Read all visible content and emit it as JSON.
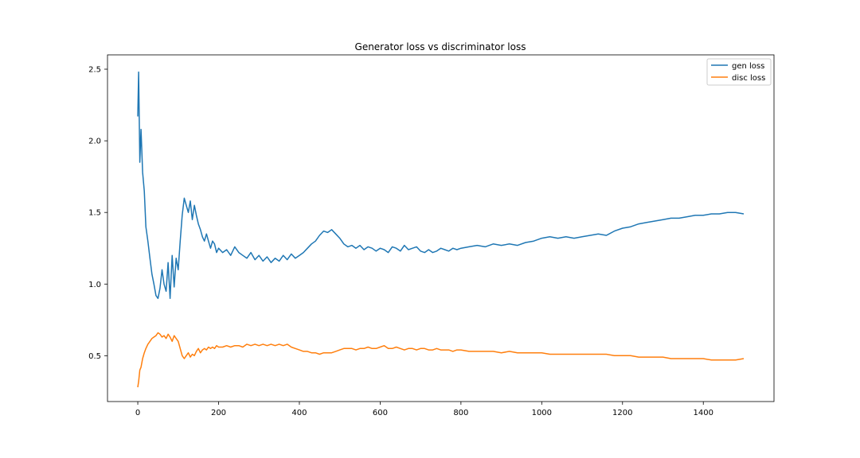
{
  "chart_data": {
    "type": "line",
    "title": "Generator loss vs discriminator loss",
    "xlabel": "",
    "ylabel": "",
    "xlim": [
      -75,
      1575
    ],
    "ylim": [
      0.18,
      2.6
    ],
    "x_ticks": [
      0,
      200,
      400,
      600,
      800,
      1000,
      1200,
      1400
    ],
    "y_ticks": [
      0.5,
      1.0,
      1.5,
      2.0,
      2.5
    ],
    "x_tick_labels": [
      "0",
      "200",
      "400",
      "600",
      "800",
      "1000",
      "1200",
      "1400"
    ],
    "y_tick_labels": [
      "0.5",
      "1.0",
      "1.5",
      "2.0",
      "2.5"
    ],
    "grid": false,
    "legend_position": "top-right",
    "series": [
      {
        "name": "gen loss",
        "color": "#1f77b4",
        "x": [
          0,
          2,
          5,
          8,
          12,
          16,
          20,
          25,
          30,
          35,
          40,
          45,
          50,
          55,
          60,
          65,
          70,
          75,
          80,
          85,
          90,
          95,
          100,
          105,
          110,
          115,
          120,
          125,
          130,
          135,
          140,
          145,
          150,
          155,
          160,
          165,
          170,
          175,
          180,
          185,
          190,
          195,
          200,
          210,
          220,
          230,
          240,
          250,
          260,
          270,
          280,
          290,
          300,
          310,
          320,
          330,
          340,
          350,
          360,
          370,
          380,
          390,
          400,
          410,
          420,
          430,
          440,
          450,
          460,
          470,
          480,
          490,
          500,
          510,
          520,
          530,
          540,
          550,
          560,
          570,
          580,
          590,
          600,
          610,
          620,
          630,
          640,
          650,
          660,
          670,
          680,
          690,
          700,
          710,
          720,
          730,
          740,
          750,
          760,
          770,
          780,
          790,
          800,
          820,
          840,
          860,
          880,
          900,
          920,
          940,
          960,
          980,
          1000,
          1020,
          1040,
          1060,
          1080,
          1100,
          1120,
          1140,
          1160,
          1180,
          1200,
          1220,
          1240,
          1260,
          1280,
          1300,
          1320,
          1340,
          1360,
          1380,
          1400,
          1420,
          1440,
          1460,
          1480,
          1500
        ],
        "values": [
          2.17,
          2.48,
          1.85,
          2.08,
          1.78,
          1.65,
          1.4,
          1.3,
          1.18,
          1.07,
          1.0,
          0.92,
          0.9,
          0.97,
          1.1,
          1.0,
          0.95,
          1.15,
          0.9,
          1.2,
          0.98,
          1.18,
          1.1,
          1.3,
          1.48,
          1.6,
          1.55,
          1.5,
          1.58,
          1.45,
          1.55,
          1.48,
          1.42,
          1.38,
          1.33,
          1.3,
          1.35,
          1.3,
          1.25,
          1.3,
          1.28,
          1.22,
          1.25,
          1.22,
          1.24,
          1.2,
          1.26,
          1.22,
          1.2,
          1.18,
          1.22,
          1.17,
          1.2,
          1.16,
          1.19,
          1.15,
          1.18,
          1.16,
          1.2,
          1.17,
          1.21,
          1.18,
          1.2,
          1.22,
          1.25,
          1.28,
          1.3,
          1.34,
          1.37,
          1.36,
          1.38,
          1.35,
          1.32,
          1.28,
          1.26,
          1.27,
          1.25,
          1.27,
          1.24,
          1.26,
          1.25,
          1.23,
          1.25,
          1.24,
          1.22,
          1.26,
          1.25,
          1.23,
          1.27,
          1.24,
          1.25,
          1.26,
          1.23,
          1.22,
          1.24,
          1.22,
          1.23,
          1.25,
          1.24,
          1.23,
          1.25,
          1.24,
          1.25,
          1.26,
          1.27,
          1.26,
          1.28,
          1.27,
          1.28,
          1.27,
          1.29,
          1.3,
          1.32,
          1.33,
          1.32,
          1.33,
          1.32,
          1.33,
          1.34,
          1.35,
          1.34,
          1.37,
          1.39,
          1.4,
          1.42,
          1.43,
          1.44,
          1.45,
          1.46,
          1.46,
          1.47,
          1.48,
          1.48,
          1.49,
          1.49,
          1.5,
          1.5,
          1.49
        ]
      },
      {
        "name": "disc loss",
        "color": "#ff7f0e",
        "x": [
          0,
          2,
          5,
          8,
          12,
          16,
          20,
          25,
          30,
          35,
          40,
          45,
          50,
          55,
          60,
          65,
          70,
          75,
          80,
          85,
          90,
          95,
          100,
          105,
          110,
          115,
          120,
          125,
          130,
          135,
          140,
          145,
          150,
          155,
          160,
          165,
          170,
          175,
          180,
          185,
          190,
          195,
          200,
          210,
          220,
          230,
          240,
          250,
          260,
          270,
          280,
          290,
          300,
          310,
          320,
          330,
          340,
          350,
          360,
          370,
          380,
          390,
          400,
          410,
          420,
          430,
          440,
          450,
          460,
          470,
          480,
          490,
          500,
          510,
          520,
          530,
          540,
          550,
          560,
          570,
          580,
          590,
          600,
          610,
          620,
          630,
          640,
          650,
          660,
          670,
          680,
          690,
          700,
          710,
          720,
          730,
          740,
          750,
          760,
          770,
          780,
          790,
          800,
          820,
          840,
          860,
          880,
          900,
          920,
          940,
          960,
          980,
          1000,
          1020,
          1040,
          1060,
          1080,
          1100,
          1120,
          1140,
          1160,
          1180,
          1200,
          1220,
          1240,
          1260,
          1280,
          1300,
          1320,
          1340,
          1360,
          1380,
          1400,
          1420,
          1440,
          1460,
          1480,
          1500
        ],
        "values": [
          0.28,
          0.32,
          0.4,
          0.42,
          0.48,
          0.52,
          0.55,
          0.58,
          0.6,
          0.62,
          0.63,
          0.64,
          0.66,
          0.65,
          0.63,
          0.64,
          0.62,
          0.65,
          0.63,
          0.6,
          0.64,
          0.62,
          0.6,
          0.55,
          0.5,
          0.48,
          0.5,
          0.52,
          0.49,
          0.51,
          0.5,
          0.53,
          0.55,
          0.52,
          0.54,
          0.55,
          0.54,
          0.56,
          0.55,
          0.56,
          0.55,
          0.57,
          0.56,
          0.56,
          0.57,
          0.56,
          0.57,
          0.57,
          0.56,
          0.58,
          0.57,
          0.58,
          0.57,
          0.58,
          0.57,
          0.58,
          0.57,
          0.58,
          0.57,
          0.58,
          0.56,
          0.55,
          0.54,
          0.53,
          0.53,
          0.52,
          0.52,
          0.51,
          0.52,
          0.52,
          0.52,
          0.53,
          0.54,
          0.55,
          0.55,
          0.55,
          0.54,
          0.55,
          0.55,
          0.56,
          0.55,
          0.55,
          0.56,
          0.57,
          0.55,
          0.55,
          0.56,
          0.55,
          0.54,
          0.55,
          0.55,
          0.54,
          0.55,
          0.55,
          0.54,
          0.54,
          0.55,
          0.54,
          0.54,
          0.54,
          0.53,
          0.54,
          0.54,
          0.53,
          0.53,
          0.53,
          0.53,
          0.52,
          0.53,
          0.52,
          0.52,
          0.52,
          0.52,
          0.51,
          0.51,
          0.51,
          0.51,
          0.51,
          0.51,
          0.51,
          0.51,
          0.5,
          0.5,
          0.5,
          0.49,
          0.49,
          0.49,
          0.49,
          0.48,
          0.48,
          0.48,
          0.48,
          0.48,
          0.47,
          0.47,
          0.47,
          0.47,
          0.48
        ]
      }
    ]
  }
}
